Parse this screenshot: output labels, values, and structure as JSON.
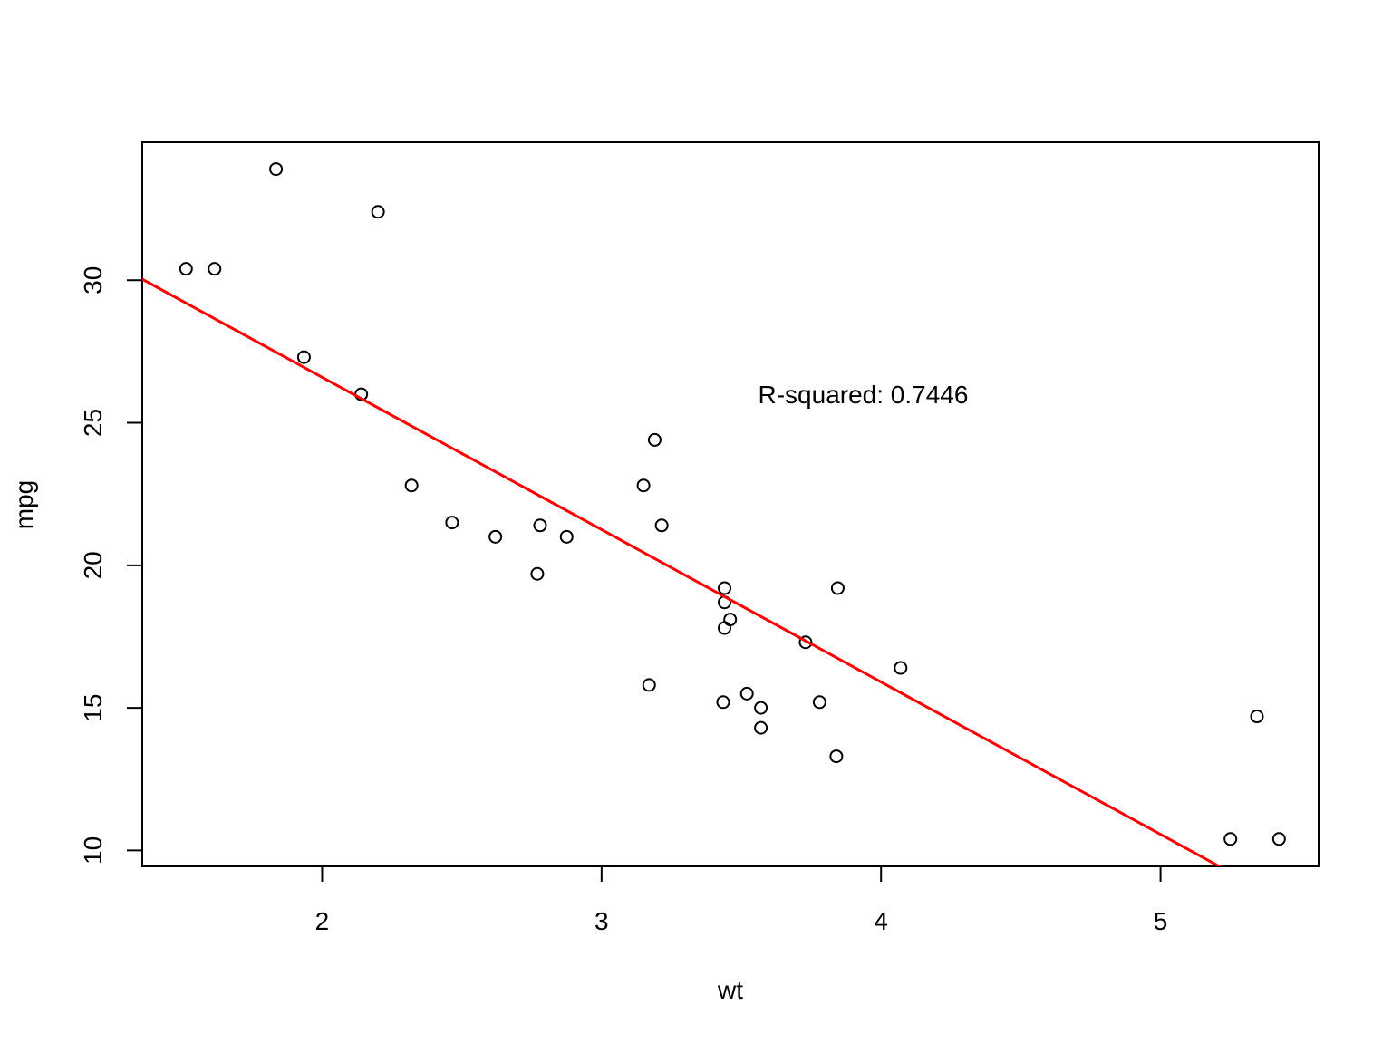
{
  "chart_data": {
    "type": "scatter",
    "title": "",
    "xlabel": "wt",
    "ylabel": "mpg",
    "xlim": [
      1.3564,
      5.5656
    ],
    "ylim": [
      9.44,
      34.84
    ],
    "x_ticks": [
      2,
      3,
      4,
      5
    ],
    "y_ticks": [
      10,
      15,
      20,
      25,
      30
    ],
    "grid": false,
    "point_color": "#000000",
    "line_color": "#ff0000",
    "points": [
      {
        "x": 2.62,
        "y": 21.0
      },
      {
        "x": 2.875,
        "y": 21.0
      },
      {
        "x": 2.32,
        "y": 22.8
      },
      {
        "x": 3.215,
        "y": 21.4
      },
      {
        "x": 3.44,
        "y": 18.7
      },
      {
        "x": 3.46,
        "y": 18.1
      },
      {
        "x": 3.57,
        "y": 14.3
      },
      {
        "x": 3.19,
        "y": 24.4
      },
      {
        "x": 3.15,
        "y": 22.8
      },
      {
        "x": 3.44,
        "y": 19.2
      },
      {
        "x": 3.44,
        "y": 17.8
      },
      {
        "x": 4.07,
        "y": 16.4
      },
      {
        "x": 3.73,
        "y": 17.3
      },
      {
        "x": 3.78,
        "y": 15.2
      },
      {
        "x": 5.25,
        "y": 10.4
      },
      {
        "x": 5.424,
        "y": 10.4
      },
      {
        "x": 5.345,
        "y": 14.7
      },
      {
        "x": 2.2,
        "y": 32.4
      },
      {
        "x": 1.615,
        "y": 30.4
      },
      {
        "x": 1.835,
        "y": 33.9
      },
      {
        "x": 2.465,
        "y": 21.5
      },
      {
        "x": 3.52,
        "y": 15.5
      },
      {
        "x": 3.435,
        "y": 15.2
      },
      {
        "x": 3.84,
        "y": 13.3
      },
      {
        "x": 3.845,
        "y": 19.2
      },
      {
        "x": 1.935,
        "y": 27.3
      },
      {
        "x": 2.14,
        "y": 26.0
      },
      {
        "x": 1.513,
        "y": 30.4
      },
      {
        "x": 3.17,
        "y": 15.8
      },
      {
        "x": 2.77,
        "y": 19.7
      },
      {
        "x": 3.57,
        "y": 15.0
      },
      {
        "x": 2.78,
        "y": 21.4
      }
    ],
    "regression": {
      "intercept": 37.2851,
      "slope": -5.3445
    },
    "annotation": {
      "text": "R-squared: 0.7446",
      "x": 3.56,
      "y": 26.0
    }
  }
}
